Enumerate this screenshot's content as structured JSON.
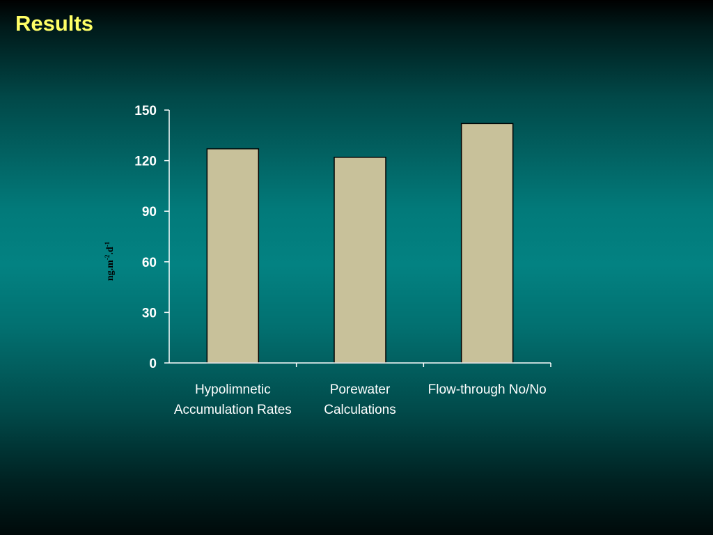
{
  "slide": {
    "title": "Results"
  },
  "chart_data": {
    "type": "bar",
    "categories": [
      [
        "Hypolimnetic",
        "Accumulation Rates"
      ],
      [
        "Porewater",
        "Calculations"
      ],
      [
        "Flow-through No/No"
      ]
    ],
    "values": [
      127,
      122,
      142
    ],
    "ylabel": {
      "base": "ng.m",
      "exp1": "-2",
      "mid": ".d",
      "exp2": "-1"
    },
    "ylim": [
      0,
      150
    ],
    "yticks": [
      0,
      30,
      60,
      90,
      120,
      150
    ],
    "grid": false,
    "legend": "none",
    "colors": {
      "bar_fill": "#c8c19a",
      "bar_stroke": "#000000",
      "axis": "#ffffff",
      "text": "#ffffff",
      "title": "#ffff66"
    }
  }
}
